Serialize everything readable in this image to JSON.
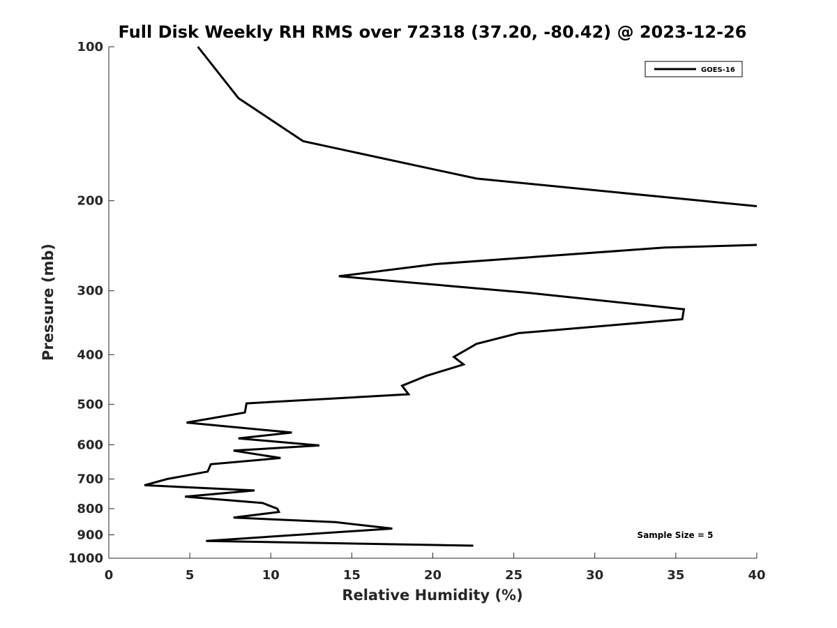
{
  "chart_data": {
    "type": "line",
    "title": "Full Disk Weekly RH RMS over 72318 (37.20, -80.42) @ 2023-12-26",
    "xlabel": "Relative Humidity (%)",
    "ylabel": "Pressure (mb)",
    "xlim": [
      0,
      40
    ],
    "ylim": [
      100,
      1000
    ],
    "y_scale": "log",
    "y_reversed": true,
    "x_ticks": [
      0,
      5,
      10,
      15,
      20,
      25,
      30,
      35,
      40
    ],
    "y_ticks": [
      100,
      200,
      300,
      400,
      500,
      600,
      700,
      800,
      900,
      1000
    ],
    "grid": false,
    "legend_position": "top-right",
    "annotation": "Sample Size = 5",
    "series": [
      {
        "name": "GOES-16",
        "color": "#000000",
        "points": [
          [
            5.5,
            100
          ],
          [
            8.0,
            126
          ],
          [
            12.0,
            153
          ],
          [
            22.7,
            181
          ],
          [
            40.0,
            205
          ],
          [
            null,
            216
          ],
          [
            40.0,
            244
          ],
          [
            34.3,
            247
          ],
          [
            20.2,
            266
          ],
          [
            14.2,
            281
          ],
          [
            26.0,
            303
          ],
          [
            35.5,
            326
          ],
          [
            35.4,
            341
          ],
          [
            25.3,
            363
          ],
          [
            22.7,
            381
          ],
          [
            21.3,
            404
          ],
          [
            21.9,
            418
          ],
          [
            19.6,
            440
          ],
          [
            18.1,
            460
          ],
          [
            18.5,
            478
          ],
          [
            8.5,
            498
          ],
          [
            8.4,
            519
          ],
          [
            4.8,
            543
          ],
          [
            11.3,
            568
          ],
          [
            8.0,
            583
          ],
          [
            13.0,
            602
          ],
          [
            7.7,
            616
          ],
          [
            10.6,
            637
          ],
          [
            6.3,
            655
          ],
          [
            6.1,
            677
          ],
          [
            3.6,
            700
          ],
          [
            2.2,
            720
          ],
          [
            9.0,
            737
          ],
          [
            4.7,
            758
          ],
          [
            9.5,
            780
          ],
          [
            10.4,
            800
          ],
          [
            10.5,
            812
          ],
          [
            7.7,
            833
          ],
          [
            14.0,
            850
          ],
          [
            17.5,
            875
          ],
          [
            6.0,
            925
          ],
          [
            22.5,
            945
          ]
        ]
      }
    ]
  }
}
